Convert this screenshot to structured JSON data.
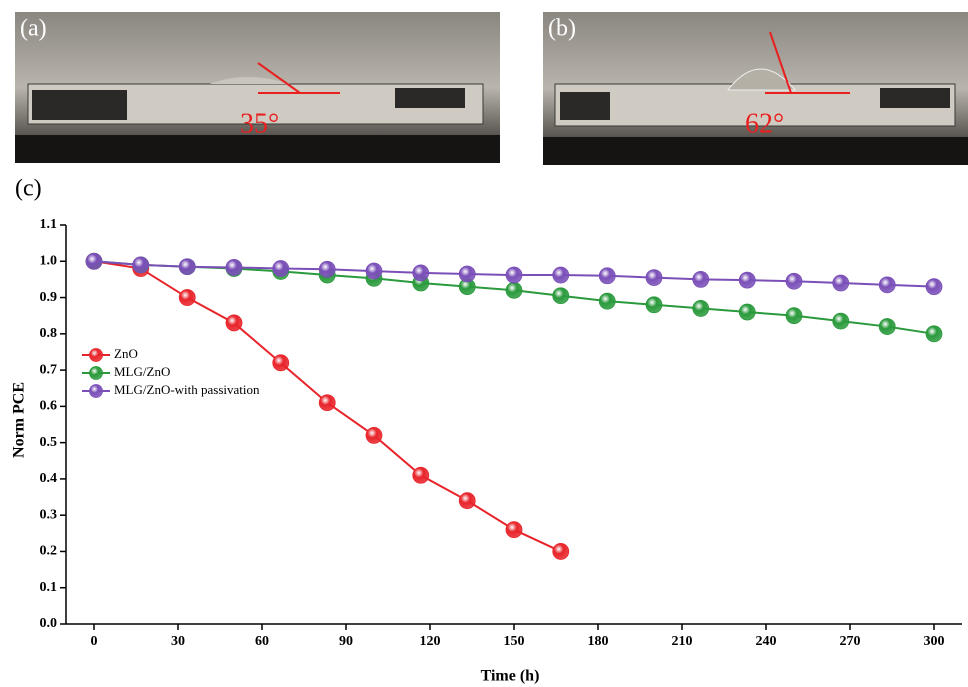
{
  "panels": {
    "a": {
      "label": "(a)",
      "angle": "35°"
    },
    "b": {
      "label": "(b)",
      "angle": "62°"
    },
    "c": {
      "label": "(c)"
    }
  },
  "chart_data": {
    "type": "line",
    "x_label": "Time (h)",
    "y_label": "Norm PCE",
    "x": [
      0,
      16.7,
      33.3,
      50,
      66.7,
      83.3,
      100,
      116.7,
      133.3,
      150,
      166.7,
      183.3,
      200,
      216.7,
      233.3,
      250,
      266.7,
      283.3,
      300
    ],
    "series": [
      {
        "name": "ZnO",
        "color": "#e8242a",
        "values": [
          1.0,
          0.98,
          0.9,
          0.83,
          0.72,
          0.61,
          0.52,
          0.41,
          0.34,
          0.26,
          0.2,
          null,
          null,
          null,
          null,
          null,
          null,
          null,
          null
        ]
      },
      {
        "name": "MLG/ZnO",
        "color": "#2a9a3c",
        "values": [
          1.0,
          0.99,
          0.985,
          0.98,
          0.972,
          0.962,
          0.953,
          0.94,
          0.93,
          0.92,
          0.905,
          0.89,
          0.88,
          0.87,
          0.86,
          0.85,
          0.835,
          0.82,
          0.8
        ]
      },
      {
        "name": "MLG/ZnO-with passivation",
        "color": "#7a4fb8",
        "values": [
          1.0,
          0.99,
          0.985,
          0.983,
          0.98,
          0.978,
          0.973,
          0.968,
          0.965,
          0.962,
          0.962,
          0.96,
          0.955,
          0.95,
          0.948,
          0.945,
          0.94,
          0.935,
          0.93
        ]
      }
    ],
    "xlim": [
      -10,
      310
    ],
    "xticks": [
      0,
      30,
      60,
      90,
      120,
      150,
      180,
      210,
      240,
      270,
      300
    ],
    "ylim": [
      0,
      1.1
    ],
    "yticks": [
      {
        "value": 0,
        "label": "0.0"
      },
      0.1,
      0.2,
      0.3,
      0.4,
      0.5,
      0.6,
      0.7,
      0.8,
      0.9,
      {
        "value": 1,
        "label": "1.0"
      },
      1.1
    ],
    "legend": "left"
  }
}
